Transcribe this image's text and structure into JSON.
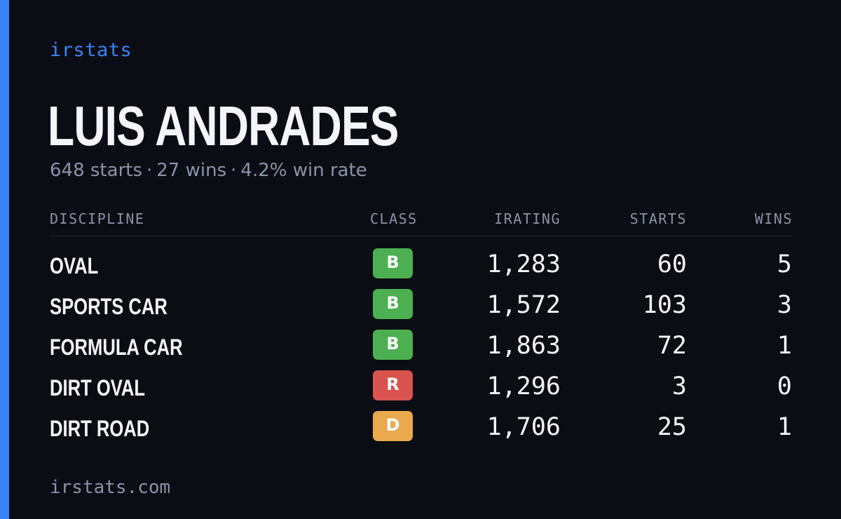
{
  "colors": {
    "accent": "#3b82f6",
    "background": "#0b0d14",
    "class_b": "#4caf50",
    "class_r": "#d9534f",
    "class_d": "#eaa94c"
  },
  "brand": "irstats",
  "player": {
    "name": "LUIS ANDRADES",
    "starts_text": "648 starts",
    "wins_text": "27 wins",
    "win_rate_text": "4.2% win rate",
    "separator": "·"
  },
  "table": {
    "headers": {
      "discipline": "DISCIPLINE",
      "class": "CLASS",
      "irating": "IRATING",
      "starts": "STARTS",
      "wins": "WINS"
    },
    "rows": [
      {
        "discipline": "OVAL",
        "class": "B",
        "class_color": "#4caf50",
        "irating": "1,283",
        "starts": "60",
        "wins": "5"
      },
      {
        "discipline": "SPORTS CAR",
        "class": "B",
        "class_color": "#4caf50",
        "irating": "1,572",
        "starts": "103",
        "wins": "3"
      },
      {
        "discipline": "FORMULA CAR",
        "class": "B",
        "class_color": "#4caf50",
        "irating": "1,863",
        "starts": "72",
        "wins": "1"
      },
      {
        "discipline": "DIRT OVAL",
        "class": "R",
        "class_color": "#d9534f",
        "irating": "1,296",
        "starts": "3",
        "wins": "0"
      },
      {
        "discipline": "DIRT ROAD",
        "class": "D",
        "class_color": "#eaa94c",
        "irating": "1,706",
        "starts": "25",
        "wins": "1"
      }
    ]
  },
  "footer": {
    "url": "irstats.com"
  }
}
